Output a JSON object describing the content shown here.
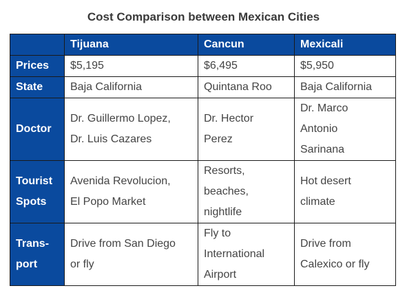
{
  "title": "Cost Comparison between Mexican Cities",
  "table": {
    "header": [
      "",
      "Tijuana",
      "Cancun",
      "Mexicali"
    ],
    "rows": [
      {
        "label": "Prices",
        "cells": [
          "$5,195",
          "$6,495",
          "$5,950"
        ]
      },
      {
        "label": "State",
        "cells": [
          "Baja California",
          "Quintana Roo",
          "Baja California"
        ]
      },
      {
        "label": "Doctor",
        "cells": [
          "Dr. Guillermo Lopez,\nDr. Luis Cazares",
          "Dr. Hector\nPerez",
          "Dr. Marco\nAntonio\nSarinana"
        ]
      },
      {
        "label": "Tourist\nSpots",
        "cells": [
          "Avenida Revolucion,\nEl Popo Market",
          "Resorts,\nbeaches,\nnightlife",
          "Hot desert\nclimate"
        ]
      },
      {
        "label": "Trans-\nport",
        "cells": [
          "Drive from San Diego\nor fly",
          "Fly to\nInternational\nAirport",
          "Drive from\nCalexico or fly"
        ]
      }
    ]
  },
  "colors": {
    "header_bg": "#0a4a9e",
    "header_text": "#ffffff",
    "cell_text": "#444444",
    "title_text": "#3a3a3a"
  }
}
